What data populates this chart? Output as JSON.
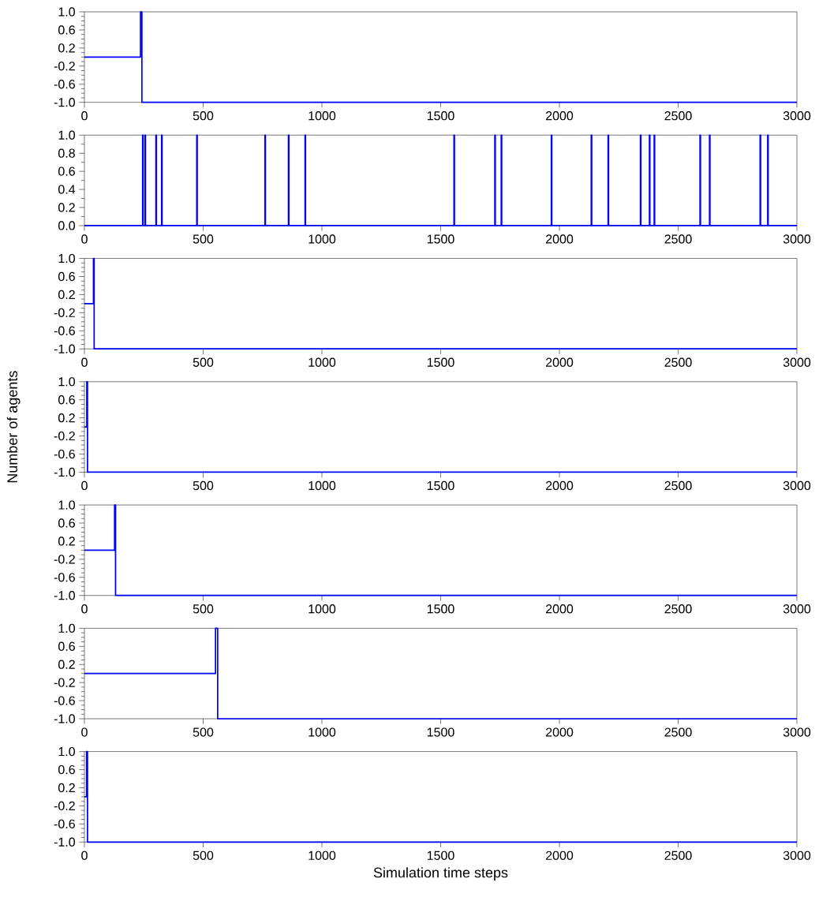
{
  "chart_data": [
    {
      "type": "step",
      "color": "#0000ff",
      "x": [
        0,
        236,
        242,
        3000
      ],
      "values": [
        0,
        1,
        -1,
        -1
      ],
      "xlim": [
        0,
        3000
      ],
      "ylim": [
        -1,
        1
      ],
      "xticks": [
        0,
        500,
        1000,
        1500,
        2000,
        2500,
        3000
      ],
      "yticks": [
        {
          "value": -1,
          "label": "-1.0"
        },
        {
          "value": -0.6,
          "label": "-0.6"
        },
        {
          "value": -0.2,
          "label": "-0.2"
        },
        {
          "value": 0.2,
          "label": "0.2"
        },
        {
          "value": 0.6,
          "label": "0.6"
        },
        {
          "value": 1,
          "label": "1.0"
        }
      ]
    },
    {
      "type": "step",
      "color": "#0000ff",
      "x": [
        0,
        245,
        247,
        255,
        257,
        301,
        303,
        325,
        327,
        473,
        475,
        760,
        762,
        859,
        861,
        929,
        931,
        1556,
        1558,
        1728,
        1730,
        1755,
        1757,
        1966,
        1968,
        2134,
        2136,
        2205,
        2207,
        2341,
        2343,
        2379,
        2381,
        2399,
        2401,
        2592,
        2594,
        2632,
        2634,
        2845,
        2847,
        2877,
        2879,
        3000
      ],
      "values": [
        0,
        1,
        0,
        1,
        0,
        1,
        0,
        1,
        0,
        1,
        0,
        1,
        0,
        1,
        0,
        1,
        0,
        1,
        0,
        1,
        0,
        1,
        0,
        1,
        0,
        1,
        0,
        1,
        0,
        1,
        0,
        1,
        0,
        1,
        0,
        1,
        0,
        1,
        0,
        1,
        0,
        1,
        0,
        0
      ],
      "xlim": [
        0,
        3000
      ],
      "ylim": [
        0,
        1
      ],
      "xticks": [
        0,
        500,
        1000,
        1500,
        2000,
        2500,
        3000
      ],
      "yticks": [
        {
          "value": 0,
          "label": "0.0"
        },
        {
          "value": 0.2,
          "label": "0.2"
        },
        {
          "value": 0.4,
          "label": "0.4"
        },
        {
          "value": 0.6,
          "label": "0.6"
        },
        {
          "value": 0.8,
          "label": "0.8"
        },
        {
          "value": 1,
          "label": "1.0"
        }
      ]
    },
    {
      "type": "step",
      "color": "#0000ff",
      "x": [
        0,
        38,
        41,
        3000
      ],
      "values": [
        0,
        1,
        -1,
        -1
      ],
      "xlim": [
        0,
        3000
      ],
      "ylim": [
        -1,
        1
      ],
      "xticks": [
        0,
        500,
        1000,
        1500,
        2000,
        2500,
        3000
      ],
      "yticks": [
        {
          "value": -1,
          "label": "-1.0"
        },
        {
          "value": -0.6,
          "label": "-0.6"
        },
        {
          "value": -0.2,
          "label": "-0.2"
        },
        {
          "value": 0.2,
          "label": "0.2"
        },
        {
          "value": 0.6,
          "label": "0.6"
        },
        {
          "value": 1,
          "label": "1.0"
        }
      ]
    },
    {
      "type": "step",
      "color": "#0000ff",
      "x": [
        0,
        10,
        13,
        3000
      ],
      "values": [
        0,
        1,
        -1,
        -1
      ],
      "xlim": [
        0,
        3000
      ],
      "ylim": [
        -1,
        1
      ],
      "xticks": [
        0,
        500,
        1000,
        1500,
        2000,
        2500,
        3000
      ],
      "yticks": [
        {
          "value": -1,
          "label": "-1.0"
        },
        {
          "value": -0.6,
          "label": "-0.6"
        },
        {
          "value": -0.2,
          "label": "-0.2"
        },
        {
          "value": 0.2,
          "label": "0.2"
        },
        {
          "value": 0.6,
          "label": "0.6"
        },
        {
          "value": 1,
          "label": "1.0"
        }
      ],
      "ylabel": "Number of agents"
    },
    {
      "type": "step",
      "color": "#0000ff",
      "x": [
        0,
        127,
        131,
        3000
      ],
      "values": [
        0,
        1,
        -1,
        -1
      ],
      "xlim": [
        0,
        3000
      ],
      "ylim": [
        -1,
        1
      ],
      "xticks": [
        0,
        500,
        1000,
        1500,
        2000,
        2500,
        3000
      ],
      "yticks": [
        {
          "value": -1,
          "label": "-1.0"
        },
        {
          "value": -0.6,
          "label": "-0.6"
        },
        {
          "value": -0.2,
          "label": "-0.2"
        },
        {
          "value": 0.2,
          "label": "0.2"
        },
        {
          "value": 0.6,
          "label": "0.6"
        },
        {
          "value": 1,
          "label": "1.0"
        }
      ]
    },
    {
      "type": "step",
      "color": "#0000ff",
      "x": [
        0,
        552,
        561,
        3000
      ],
      "values": [
        0,
        1,
        -1,
        -1
      ],
      "xlim": [
        0,
        3000
      ],
      "ylim": [
        -1,
        1
      ],
      "xticks": [
        0,
        500,
        1000,
        1500,
        2000,
        2500,
        3000
      ],
      "yticks": [
        {
          "value": -1,
          "label": "-1.0"
        },
        {
          "value": -0.6,
          "label": "-0.6"
        },
        {
          "value": -0.2,
          "label": "-0.2"
        },
        {
          "value": 0.2,
          "label": "0.2"
        },
        {
          "value": 0.6,
          "label": "0.6"
        },
        {
          "value": 1,
          "label": "1.0"
        }
      ]
    },
    {
      "type": "step",
      "color": "#0000ff",
      "x": [
        0,
        9,
        13,
        3000
      ],
      "values": [
        0,
        1,
        -1,
        -1
      ],
      "xlim": [
        0,
        3000
      ],
      "ylim": [
        -1,
        1
      ],
      "xticks": [
        0,
        500,
        1000,
        1500,
        2000,
        2500,
        3000
      ],
      "yticks": [
        {
          "value": -1,
          "label": "-1.0"
        },
        {
          "value": -0.6,
          "label": "-0.6"
        },
        {
          "value": -0.2,
          "label": "-0.2"
        },
        {
          "value": 0.2,
          "label": "0.2"
        },
        {
          "value": 0.6,
          "label": "0.6"
        },
        {
          "value": 1,
          "label": "1.0"
        }
      ],
      "xlabel": "Simulation time steps"
    }
  ]
}
